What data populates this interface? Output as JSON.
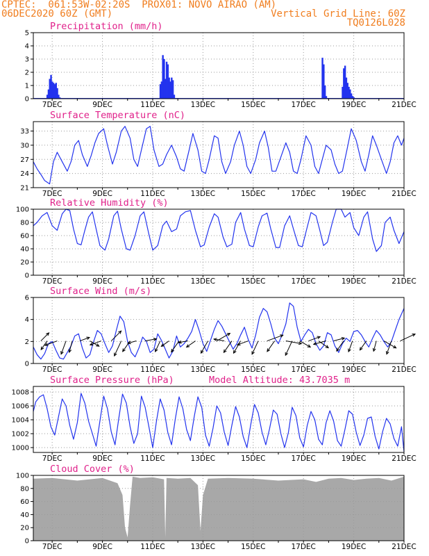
{
  "header": {
    "line1_left": "CPTEC:  061:53W-02:20S  PROX01: NOVO AIRAO (AM)",
    "line2_left": "06DEC2020 60Z (GMT)",
    "line2_right": "Vertical Grid Line: 60Z",
    "line3_right": "TQ0126L028"
  },
  "colors": {
    "header": "#f07d1e",
    "title": "#e0208a",
    "line": "#2233ee",
    "cloud": "#a8a8a8",
    "wind_arrow": "#000000"
  },
  "x_ticks": [
    "7DEC",
    "9DEC",
    "11DEC",
    "13DEC",
    "15DEC",
    "17DEC",
    "19DEC",
    "21DEC"
  ],
  "chart_data": [
    {
      "id": "precip",
      "type": "bar",
      "title": "Precipitation (mm/h)",
      "x_range_days": [
        6.25,
        21.0
      ],
      "ylim": [
        0,
        5
      ],
      "yticks": [
        "0",
        "1",
        "2",
        "3",
        "4",
        "5"
      ],
      "grid": true,
      "x": [
        6.8,
        6.85,
        6.9,
        6.95,
        7.0,
        7.05,
        7.1,
        7.15,
        7.2,
        7.25,
        7.3,
        11.3,
        11.35,
        11.4,
        11.45,
        11.5,
        11.55,
        11.6,
        11.65,
        11.7,
        11.75,
        11.8,
        11.85,
        17.75,
        17.8,
        17.85,
        17.9,
        18.55,
        18.6,
        18.65,
        18.7,
        18.75,
        18.8,
        18.85,
        18.9,
        18.95,
        19.0
      ],
      "values": [
        0.3,
        0.7,
        1.5,
        1.8,
        1.3,
        1.2,
        1.1,
        1.2,
        0.8,
        0.3,
        0.1,
        1.1,
        1.3,
        3.3,
        3.0,
        1.5,
        2.8,
        2.6,
        1.6,
        1.3,
        1.6,
        1.4,
        0.3,
        3.1,
        2.6,
        1.0,
        0.2,
        0.9,
        2.3,
        2.5,
        1.6,
        1.2,
        0.9,
        0.7,
        0.4,
        0.2,
        0.1
      ]
    },
    {
      "id": "temp",
      "type": "line",
      "title": "Surface Temperature (nC)",
      "x_range_days": [
        6.25,
        21.0
      ],
      "ylim": [
        21,
        35
      ],
      "yticks": [
        "21",
        "24",
        "27",
        "30",
        "33"
      ],
      "grid": true,
      "x": [
        6.25,
        6.4,
        6.55,
        6.7,
        6.9,
        7.05,
        7.2,
        7.4,
        7.6,
        7.75,
        7.9,
        8.05,
        8.2,
        8.4,
        8.55,
        8.7,
        8.85,
        9.05,
        9.2,
        9.4,
        9.55,
        9.75,
        9.9,
        10.1,
        10.25,
        10.4,
        10.55,
        10.75,
        10.9,
        11.05,
        11.25,
        11.4,
        11.55,
        11.75,
        11.95,
        12.1,
        12.25,
        12.45,
        12.6,
        12.8,
        12.95,
        13.1,
        13.25,
        13.45,
        13.6,
        13.75,
        13.9,
        14.1,
        14.25,
        14.45,
        14.6,
        14.75,
        14.9,
        15.1,
        15.25,
        15.45,
        15.6,
        15.75,
        15.9,
        16.1,
        16.3,
        16.45,
        16.6,
        16.75,
        16.9,
        17.1,
        17.3,
        17.45,
        17.6,
        17.75,
        17.9,
        18.1,
        18.25,
        18.4,
        18.55,
        18.75,
        18.9,
        19.1,
        19.3,
        19.45,
        19.6,
        19.75,
        19.9,
        20.1,
        20.3,
        20.45,
        20.6,
        20.75,
        20.9,
        21.0
      ],
      "values": [
        26.5,
        25.0,
        23.8,
        22.5,
        21.8,
        26.5,
        28.5,
        26.5,
        24.5,
        26.5,
        30.0,
        31.0,
        28.0,
        25.5,
        27.8,
        30.5,
        32.5,
        33.5,
        30.0,
        26.0,
        28.5,
        33.0,
        34.0,
        31.5,
        27.0,
        25.5,
        29.0,
        33.5,
        34.0,
        29.0,
        25.5,
        26.0,
        28.0,
        30.0,
        27.5,
        25.0,
        24.5,
        29.0,
        32.5,
        29.0,
        24.5,
        24.0,
        27.0,
        32.0,
        31.5,
        26.5,
        24.0,
        26.5,
        30.0,
        33.0,
        30.0,
        25.5,
        24.0,
        27.0,
        30.5,
        33.0,
        29.5,
        24.5,
        24.5,
        27.5,
        30.5,
        28.5,
        24.5,
        24.0,
        27.0,
        32.0,
        30.0,
        25.5,
        24.0,
        27.0,
        30.0,
        29.0,
        26.0,
        24.0,
        24.5,
        29.5,
        33.5,
        31.0,
        26.5,
        24.5,
        28.0,
        32.0,
        30.0,
        27.0,
        24.0,
        26.5,
        30.5,
        32.0,
        30.0,
        31.5
      ]
    },
    {
      "id": "rh",
      "type": "line",
      "title": "Relative Humidity (%)",
      "x_range_days": [
        6.25,
        21.0
      ],
      "ylim": [
        0,
        100
      ],
      "yticks": [
        "0",
        "20",
        "40",
        "60",
        "80",
        "100"
      ],
      "grid": true,
      "x": [
        6.25,
        6.4,
        6.6,
        6.8,
        7.0,
        7.2,
        7.4,
        7.55,
        7.7,
        7.85,
        8.0,
        8.15,
        8.3,
        8.45,
        8.6,
        8.75,
        8.9,
        9.1,
        9.25,
        9.45,
        9.6,
        9.75,
        9.95,
        10.1,
        10.3,
        10.5,
        10.65,
        10.85,
        11.0,
        11.2,
        11.4,
        11.55,
        11.75,
        11.95,
        12.1,
        12.3,
        12.5,
        12.7,
        12.9,
        13.05,
        13.25,
        13.45,
        13.6,
        13.8,
        13.95,
        14.15,
        14.3,
        14.5,
        14.65,
        14.85,
        15.0,
        15.2,
        15.35,
        15.55,
        15.7,
        15.9,
        16.05,
        16.25,
        16.45,
        16.6,
        16.8,
        16.95,
        17.15,
        17.3,
        17.5,
        17.65,
        17.8,
        17.95,
        18.15,
        18.3,
        18.5,
        18.65,
        18.85,
        19.0,
        19.2,
        19.4,
        19.55,
        19.75,
        19.9,
        20.1,
        20.25,
        20.45,
        20.6,
        20.8,
        21.0
      ],
      "values": [
        75,
        80,
        90,
        95,
        75,
        68,
        93,
        100,
        98,
        70,
        48,
        46,
        68,
        88,
        96,
        70,
        45,
        38,
        55,
        90,
        97,
        70,
        40,
        38,
        60,
        90,
        96,
        62,
        38,
        45,
        75,
        82,
        66,
        70,
        90,
        96,
        98,
        68,
        43,
        46,
        73,
        93,
        88,
        58,
        43,
        47,
        80,
        95,
        70,
        45,
        43,
        73,
        90,
        94,
        70,
        42,
        42,
        75,
        90,
        70,
        45,
        43,
        73,
        95,
        90,
        68,
        45,
        50,
        80,
        100,
        100,
        88,
        95,
        72,
        60,
        88,
        96,
        55,
        36,
        45,
        80,
        88,
        68,
        48,
        66
      ]
    },
    {
      "id": "wind",
      "type": "line",
      "title": "Surface Wind (m/s)",
      "x_range_days": [
        6.25,
        21.0
      ],
      "ylim": [
        0,
        6
      ],
      "yticks": [
        "0",
        "2",
        "4",
        "6"
      ],
      "grid": true,
      "x": [
        6.25,
        6.4,
        6.55,
        6.7,
        6.85,
        7.0,
        7.15,
        7.3,
        7.45,
        7.6,
        7.75,
        7.9,
        8.05,
        8.2,
        8.35,
        8.5,
        8.65,
        8.8,
        8.95,
        9.1,
        9.25,
        9.4,
        9.55,
        9.7,
        9.85,
        10.0,
        10.15,
        10.3,
        10.45,
        10.6,
        10.75,
        10.9,
        11.05,
        11.2,
        11.35,
        11.5,
        11.65,
        11.8,
        11.95,
        12.1,
        12.25,
        12.4,
        12.55,
        12.7,
        12.85,
        13.0,
        13.15,
        13.3,
        13.45,
        13.6,
        13.75,
        13.9,
        14.05,
        14.2,
        14.35,
        14.5,
        14.65,
        14.8,
        14.95,
        15.1,
        15.25,
        15.4,
        15.55,
        15.7,
        15.85,
        16.0,
        16.15,
        16.3,
        16.45,
        16.6,
        16.75,
        16.9,
        17.05,
        17.2,
        17.35,
        17.5,
        17.65,
        17.8,
        17.95,
        18.1,
        18.25,
        18.4,
        18.55,
        18.7,
        18.85,
        19.0,
        19.15,
        19.3,
        19.45,
        19.6,
        19.75,
        19.9,
        20.05,
        20.2,
        20.35,
        20.5,
        20.65,
        20.8,
        21.0
      ],
      "values": [
        1.5,
        0.8,
        0.4,
        0.9,
        1.8,
        2.0,
        1.2,
        0.5,
        0.4,
        1.0,
        1.6,
        2.5,
        2.7,
        1.4,
        0.5,
        0.8,
        2.0,
        3.0,
        2.7,
        1.8,
        1.0,
        1.6,
        3.0,
        4.3,
        3.8,
        2.0,
        1.0,
        0.6,
        1.4,
        2.4,
        2.0,
        1.0,
        1.3,
        2.7,
        2.1,
        1.3,
        0.5,
        1.1,
        2.5,
        1.5,
        1.8,
        2.3,
        2.9,
        4.0,
        3.0,
        1.8,
        1.1,
        2.1,
        3.1,
        3.9,
        3.4,
        2.7,
        2.0,
        1.3,
        1.8,
        2.6,
        3.3,
        2.2,
        1.4,
        2.6,
        4.2,
        5.0,
        4.7,
        3.6,
        2.3,
        1.8,
        2.6,
        3.6,
        5.5,
        5.2,
        3.3,
        2.0,
        2.6,
        3.1,
        2.8,
        1.8,
        1.2,
        1.6,
        2.8,
        2.6,
        1.6,
        1.0,
        1.8,
        2.3,
        2.0,
        2.9,
        3.0,
        2.6,
        2.0,
        1.5,
        2.3,
        3.0,
        2.6,
        2.0,
        1.5,
        2.0,
        3.0,
        4.0,
        5.0
      ]
    },
    {
      "id": "pressure",
      "type": "line",
      "title": "Surface Pressure (hPa)",
      "annotation": "Model Altitude: 43.7035 m",
      "x_range_days": [
        6.25,
        21.0
      ],
      "ylim": [
        999.3,
        1008.8
      ],
      "yticks": [
        "1000",
        "1002",
        "1004",
        "1006",
        "1008"
      ],
      "grid": true,
      "x": [
        6.25,
        6.35,
        6.5,
        6.65,
        6.8,
        6.95,
        7.1,
        7.25,
        7.4,
        7.55,
        7.7,
        7.85,
        8.0,
        8.15,
        8.3,
        8.45,
        8.6,
        8.75,
        8.9,
        9.05,
        9.2,
        9.35,
        9.5,
        9.65,
        9.8,
        9.95,
        10.1,
        10.25,
        10.4,
        10.55,
        10.7,
        10.85,
        11.0,
        11.15,
        11.3,
        11.45,
        11.6,
        11.75,
        11.9,
        12.05,
        12.2,
        12.35,
        12.5,
        12.65,
        12.8,
        12.95,
        13.1,
        13.25,
        13.4,
        13.55,
        13.7,
        13.85,
        14.0,
        14.15,
        14.3,
        14.45,
        14.6,
        14.75,
        14.9,
        15.05,
        15.2,
        15.35,
        15.5,
        15.65,
        15.8,
        15.95,
        16.1,
        16.25,
        16.4,
        16.55,
        16.7,
        16.85,
        17.0,
        17.15,
        17.3,
        17.45,
        17.6,
        17.75,
        17.9,
        18.05,
        18.2,
        18.35,
        18.5,
        18.65,
        18.8,
        18.95,
        19.1,
        19.25,
        19.4,
        19.55,
        19.7,
        19.85,
        20.0,
        20.15,
        20.3,
        20.45,
        20.6,
        20.75,
        20.9,
        21.0
      ],
      "values": [
        1005.2,
        1006.6,
        1007.3,
        1007.6,
        1005.6,
        1003.0,
        1001.8,
        1004.4,
        1007.0,
        1006.0,
        1003.2,
        1001.2,
        1003.6,
        1007.8,
        1006.4,
        1003.8,
        1002.0,
        1000.2,
        1003.8,
        1007.4,
        1005.6,
        1002.3,
        1000.4,
        1004.2,
        1007.7,
        1006.4,
        1003.0,
        1000.6,
        1002.0,
        1007.4,
        1005.8,
        1003.0,
        1000.0,
        1003.8,
        1007.0,
        1005.4,
        1002.2,
        1000.4,
        1004.1,
        1007.3,
        1005.6,
        1002.6,
        1001.0,
        1004.4,
        1007.3,
        1005.8,
        1001.8,
        1000.2,
        1002.8,
        1006.0,
        1005.0,
        1002.2,
        1000.3,
        1003.2,
        1005.9,
        1004.4,
        1001.6,
        1000.0,
        1003.3,
        1006.2,
        1005.0,
        1002.2,
        1000.4,
        1002.7,
        1005.4,
        1004.8,
        1002.0,
        1000.0,
        1002.2,
        1005.8,
        1004.6,
        1001.4,
        1000.1,
        1003.2,
        1005.2,
        1004.0,
        1001.2,
        1000.4,
        1003.6,
        1005.3,
        1003.8,
        1001.0,
        1000.2,
        1002.6,
        1005.3,
        1004.8,
        1002.2,
        1000.3,
        1001.8,
        1004.2,
        1004.4,
        1001.6,
        999.8,
        1002.3,
        1004.2,
        1003.4,
        1001.3,
        1000.2,
        1003.0,
        999.4
      ]
    },
    {
      "id": "cloud",
      "type": "area",
      "title": "Cloud Cover (%)",
      "x_range_days": [
        6.25,
        21.0
      ],
      "ylim": [
        0,
        100
      ],
      "yticks": [
        "0",
        "20",
        "40",
        "60",
        "80",
        "100"
      ],
      "grid": true,
      "x": [
        6.25,
        7.0,
        8.0,
        8.5,
        9.0,
        9.6,
        9.8,
        9.9,
        10.0,
        10.1,
        10.2,
        10.5,
        11.0,
        11.45,
        11.5,
        11.55,
        12.0,
        12.5,
        12.8,
        12.9,
        13.0,
        13.2,
        14.0,
        15.0,
        16.0,
        17.0,
        17.5,
        18.0,
        18.5,
        19.0,
        19.5,
        20.0,
        20.5,
        21.0
      ],
      "values": [
        95,
        96,
        92,
        94,
        96,
        88,
        70,
        20,
        5,
        55,
        98,
        96,
        97,
        94,
        5,
        96,
        95,
        96,
        85,
        15,
        70,
        95,
        96,
        95,
        92,
        94,
        90,
        95,
        96,
        93,
        95,
        96,
        92,
        98
      ]
    }
  ],
  "wind_vectors": {
    "x": [
      6.55,
      6.8,
      7.2,
      7.55,
      7.8,
      8.1,
      8.5,
      8.95,
      9.35,
      9.75,
      10.1,
      10.35,
      10.7,
      11.3,
      11.65,
      12.05,
      12.4,
      12.7,
      13.2,
      13.55,
      13.85,
      14.15,
      14.5,
      14.8,
      15.2,
      15.55,
      15.85,
      16.3,
      16.55,
      16.85,
      17.2,
      17.6,
      17.9,
      18.2,
      18.6,
      18.95,
      19.5,
      19.9,
      20.2,
      20.5,
      20.85
    ],
    "dir_to_deg": [
      45,
      215,
      250,
      200,
      195,
      70,
      120,
      250,
      45,
      205,
      215,
      255,
      80,
      205,
      235,
      215,
      260,
      235,
      210,
      60,
      280,
      215,
      210,
      250,
      205,
      70,
      215,
      100,
      205,
      120,
      70,
      125,
      255,
      75,
      215,
      200,
      215,
      195,
      120,
      200,
      65
    ],
    "speed": [
      2.5,
      2.2,
      3.0,
      3.4,
      2.6,
      2.1,
      2.2,
      2.6,
      3.4,
      4.2,
      3.0,
      1.6,
      2.5,
      2.6,
      1.8,
      3.2,
      1.8,
      2.3,
      3.4,
      3.8,
      2.2,
      3.4,
      3.4,
      2.5,
      3.6,
      4.4,
      3.0,
      4.0,
      4.0,
      2.8,
      2.8,
      2.7,
      3.0,
      2.4,
      2.8,
      2.5,
      2.4,
      2.2,
      3.4,
      3.4,
      4.2
    ]
  }
}
